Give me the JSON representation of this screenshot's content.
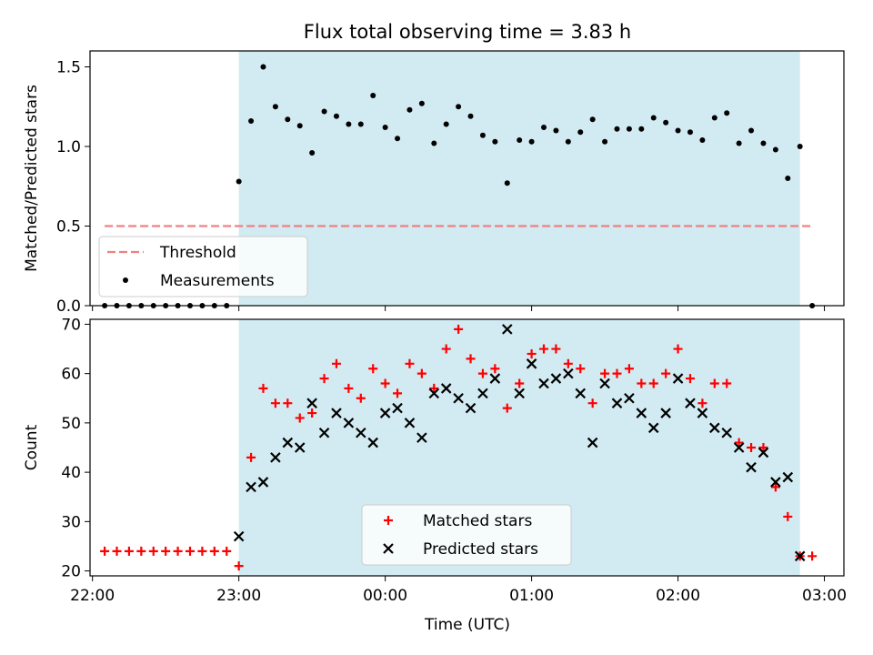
{
  "chart_data": {
    "title": "Flux total observing time = 3.83 h",
    "observing_window": [
      "23:00",
      "02:50"
    ],
    "x_axis": {
      "label": "Time (UTC)",
      "ticks": [
        "22:00",
        "23:00",
        "00:00",
        "01:00",
        "02:00",
        "03:00"
      ],
      "range": [
        "21:59",
        "03:08"
      ]
    },
    "x": [
      "22:05",
      "22:10",
      "22:15",
      "22:20",
      "22:25",
      "22:30",
      "22:35",
      "22:40",
      "22:45",
      "22:50",
      "22:55",
      "23:00",
      "23:05",
      "23:10",
      "23:15",
      "23:20",
      "23:25",
      "23:30",
      "23:35",
      "23:40",
      "23:45",
      "23:50",
      "23:55",
      "00:00",
      "00:05",
      "00:10",
      "00:15",
      "00:20",
      "00:25",
      "00:30",
      "00:35",
      "00:40",
      "00:45",
      "00:50",
      "00:55",
      "01:00",
      "01:05",
      "01:10",
      "01:15",
      "01:20",
      "01:25",
      "01:30",
      "01:35",
      "01:40",
      "01:45",
      "01:50",
      "01:55",
      "02:00",
      "02:05",
      "02:10",
      "02:15",
      "02:20",
      "02:25",
      "02:30",
      "02:35",
      "02:40",
      "02:45",
      "02:50",
      "02:55"
    ],
    "panels": [
      {
        "type": "scatter",
        "ylabel": "Matched/Predicted stars",
        "ylim": [
          0,
          1.6
        ],
        "yticks": [
          "0.0",
          "0.5",
          "1.0",
          "1.5"
        ],
        "threshold": {
          "name": "Threshold",
          "value": 0.5,
          "color": "#f08080"
        },
        "legend_position": "lower-left",
        "series": [
          {
            "name": "Measurements",
            "color": "#000000",
            "values": [
              0,
              0,
              0,
              0,
              0,
              0,
              0,
              0,
              0,
              0,
              0,
              0.78,
              1.16,
              1.5,
              1.25,
              1.17,
              1.13,
              0.96,
              1.22,
              1.19,
              1.14,
              1.14,
              1.32,
              1.12,
              1.05,
              1.23,
              1.27,
              1.02,
              1.14,
              1.25,
              1.19,
              1.07,
              1.03,
              0.77,
              1.04,
              1.03,
              1.12,
              1.1,
              1.03,
              1.09,
              1.17,
              1.03,
              1.11,
              1.11,
              1.11,
              1.18,
              1.15,
              1.1,
              1.09,
              1.04,
              1.18,
              1.21,
              1.02,
              1.1,
              1.02,
              0.98,
              0.8,
              1.0,
              0
            ]
          }
        ]
      },
      {
        "type": "scatter",
        "ylabel": "Count",
        "ylim": [
          19,
          71
        ],
        "yticks": [
          "20",
          "30",
          "40",
          "50",
          "60",
          "70"
        ],
        "legend_position": "lower-center",
        "series": [
          {
            "name": "Matched stars",
            "marker": "+",
            "color": "#ff0000",
            "values": [
              24,
              24,
              24,
              24,
              24,
              24,
              24,
              24,
              24,
              24,
              24,
              21,
              43,
              57,
              54,
              54,
              51,
              52,
              59,
              62,
              57,
              55,
              61,
              58,
              56,
              62,
              60,
              57,
              65,
              69,
              63,
              60,
              61,
              53,
              58,
              64,
              65,
              65,
              62,
              61,
              54,
              60,
              60,
              61,
              58,
              58,
              60,
              65,
              59,
              54,
              58,
              58,
              46,
              45,
              45,
              37,
              31,
              23,
              23
            ]
          },
          {
            "name": "Predicted stars",
            "marker": "x",
            "color": "#000000",
            "values": [
              null,
              null,
              null,
              null,
              null,
              null,
              null,
              null,
              null,
              null,
              null,
              27,
              37,
              38,
              43,
              46,
              45,
              54,
              48,
              52,
              50,
              48,
              46,
              52,
              53,
              50,
              47,
              56,
              57,
              55,
              53,
              56,
              59,
              69,
              56,
              62,
              58,
              59,
              60,
              56,
              46,
              58,
              54,
              55,
              52,
              49,
              52,
              59,
              54,
              52,
              49,
              48,
              45,
              41,
              44,
              38,
              39,
              23,
              null
            ]
          }
        ]
      }
    ]
  },
  "colors": {
    "window_fill": "#add8e6",
    "threshold": "#f08080",
    "matched": "#ff0000",
    "predicted": "#000000"
  }
}
